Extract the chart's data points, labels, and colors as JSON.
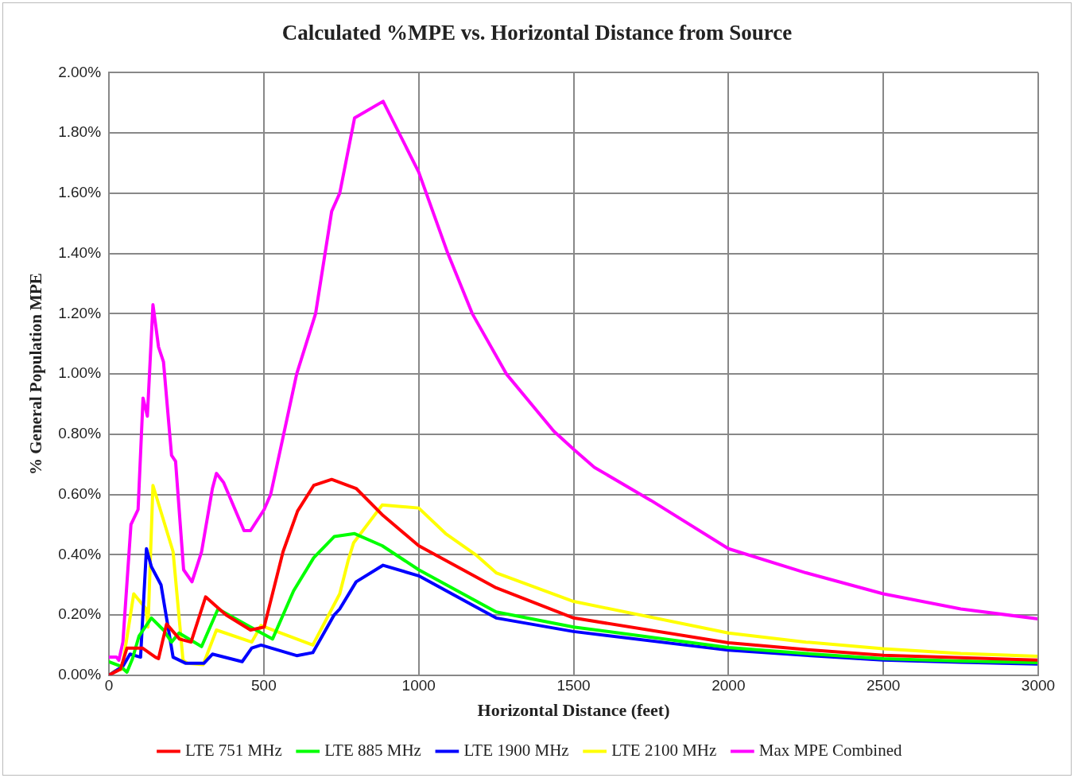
{
  "chart_data": {
    "type": "line",
    "title": "Calculated %MPE vs. Horizontal Distance from Source",
    "xlabel": "Horizontal Distance (feet)",
    "ylabel": "% General Population MPE",
    "xlim": [
      0,
      3000
    ],
    "xticks": [
      0,
      500,
      1000,
      1500,
      2000,
      2500,
      3000
    ],
    "ylim": [
      0,
      2
    ],
    "yticks": [
      {
        "value": 0,
        "label": "0.00%"
      },
      {
        "value": 0.2,
        "label": "0.20%"
      },
      {
        "value": 0.4,
        "label": "0.40%"
      },
      {
        "value": 0.6,
        "label": "0.60%"
      },
      {
        "value": 0.8,
        "label": "0.80%"
      },
      {
        "value": 1,
        "label": "1.00%"
      },
      {
        "value": 1.2,
        "label": "1.20%"
      },
      {
        "value": 1.4,
        "label": "1.40%"
      },
      {
        "value": 1.6,
        "label": "1.60%"
      },
      {
        "value": 1.8,
        "label": "1.80%"
      },
      {
        "value": 2,
        "label": "2.00%"
      }
    ],
    "grid": true,
    "legend": "bottom",
    "marker": "none",
    "line_style": "solid",
    "series": [
      {
        "name": "LTE 751 MHz",
        "color": "#ff0000",
        "x": [
          0,
          37,
          58,
          89,
          108,
          150,
          160,
          186,
          228,
          265,
          312,
          378,
          457,
          501,
          562,
          609,
          661,
          719,
          798,
          885,
          1000,
          1250,
          1500,
          2000,
          2250,
          2500,
          2750,
          3000
        ],
        "values": [
          0,
          0.02,
          0.09,
          0.09,
          0.09,
          0.06,
          0.055,
          0.17,
          0.12,
          0.11,
          0.26,
          0.2,
          0.15,
          0.16,
          0.41,
          0.545,
          0.63,
          0.65,
          0.62,
          0.53,
          0.43,
          0.29,
          0.19,
          0.108,
          0.085,
          0.066,
          0.058,
          0.05
        ]
      },
      {
        "name": "LTE 885 MHz",
        "color": "#00ff00",
        "x": [
          0,
          37,
          58,
          76,
          97,
          137,
          176,
          202,
          226,
          299,
          352,
          457,
          528,
          596,
          661,
          727,
          793,
          882,
          1000,
          1250,
          1500,
          2000,
          2250,
          2500,
          2750,
          3000
        ],
        "values": [
          0.045,
          0.03,
          0.01,
          0.055,
          0.13,
          0.19,
          0.15,
          0.11,
          0.14,
          0.095,
          0.22,
          0.16,
          0.12,
          0.28,
          0.39,
          0.46,
          0.47,
          0.43,
          0.35,
          0.21,
          0.16,
          0.092,
          0.072,
          0.055,
          0.047,
          0.042
        ]
      },
      {
        "name": "LTE 1900 MHz",
        "color": "#0000ff",
        "x": [
          0,
          45,
          68,
          102,
          121,
          137,
          168,
          207,
          247,
          307,
          334,
          430,
          461,
          491,
          606,
          658,
          727,
          745,
          798,
          885,
          1000,
          1250,
          1500,
          2000,
          2250,
          2500,
          2750,
          3000
        ],
        "values": [
          0,
          0.03,
          0.07,
          0.06,
          0.42,
          0.36,
          0.3,
          0.06,
          0.04,
          0.04,
          0.07,
          0.045,
          0.09,
          0.1,
          0.065,
          0.075,
          0.2,
          0.22,
          0.31,
          0.365,
          0.33,
          0.19,
          0.145,
          0.083,
          0.066,
          0.05,
          0.043,
          0.037
        ]
      },
      {
        "name": "LTE 2100 MHz",
        "color": "#ffff00",
        "x": [
          0,
          20,
          42,
          80,
          120,
          126,
          142,
          207,
          239,
          253,
          304,
          347,
          461,
          491,
          658,
          745,
          772,
          790,
          882,
          1000,
          1087,
          1184,
          1250,
          1500,
          2000,
          2250,
          2500,
          2750,
          3000
        ],
        "values": [
          0,
          0.015,
          0.02,
          0.27,
          0.22,
          0.16,
          0.63,
          0.41,
          0.05,
          0.04,
          0.035,
          0.15,
          0.11,
          0.165,
          0.1,
          0.27,
          0.38,
          0.44,
          0.565,
          0.555,
          0.47,
          0.4,
          0.34,
          0.245,
          0.14,
          0.11,
          0.088,
          0.072,
          0.063
        ]
      },
      {
        "name": "Max MPE Combined",
        "color": "#ff00ff",
        "x": [
          0,
          24,
          32,
          45,
          71,
          94,
          110,
          124,
          142,
          160,
          176,
          202,
          215,
          241,
          268,
          299,
          334,
          347,
          370,
          436,
          457,
          501,
          522,
          606,
          667,
          719,
          745,
          793,
          885,
          1000,
          1094,
          1173,
          1283,
          1436,
          1500,
          1567,
          1750,
          2000,
          2250,
          2500,
          2750,
          3000
        ],
        "values": [
          0.06,
          0.06,
          0.05,
          0.11,
          0.5,
          0.55,
          0.92,
          0.86,
          1.23,
          1.09,
          1.04,
          0.73,
          0.71,
          0.35,
          0.31,
          0.41,
          0.62,
          0.67,
          0.64,
          0.48,
          0.48,
          0.55,
          0.6,
          1,
          1.2,
          1.54,
          1.6,
          1.85,
          1.905,
          1.67,
          1.4,
          1.2,
          1,
          0.81,
          0.75,
          0.69,
          0.58,
          0.42,
          0.34,
          0.27,
          0.22,
          0.187
        ]
      }
    ]
  }
}
